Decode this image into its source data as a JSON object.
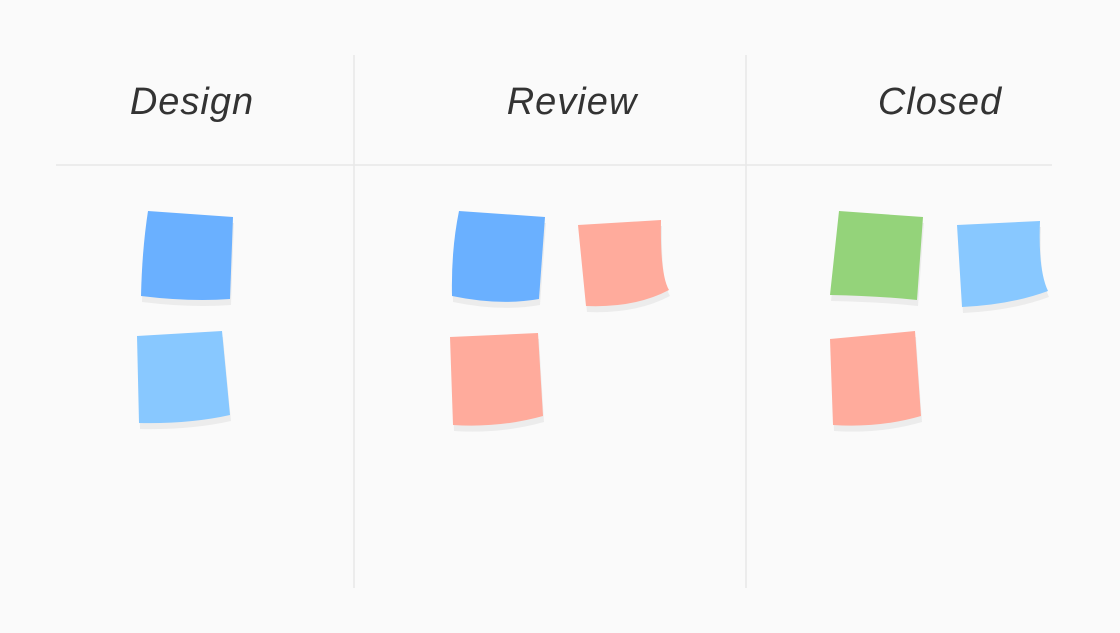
{
  "board": {
    "background": "#fafafa",
    "divider_color": "#e8e8e8",
    "columns": [
      {
        "title": "Design",
        "notes": [
          {
            "color": "#6ab0ff"
          },
          {
            "color": "#88c8ff"
          }
        ]
      },
      {
        "title": "Review",
        "notes": [
          {
            "color": "#6ab0ff"
          },
          {
            "color": "#ffab9c"
          },
          {
            "color": "#ffab9c"
          }
        ]
      },
      {
        "title": "Closed",
        "notes": [
          {
            "color": "#94d37a"
          },
          {
            "color": "#88c8ff"
          },
          {
            "color": "#ffab9c"
          }
        ]
      }
    ]
  }
}
